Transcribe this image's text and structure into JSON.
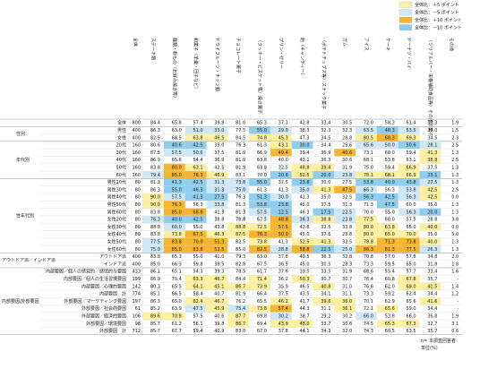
{
  "legend": [
    {
      "label": "全体比：＋5 ポイント",
      "value": 5,
      "color": "#fdf0a0"
    },
    {
      "label": "全体比：－5 ポイント",
      "value": -5,
      "color": "#cfe8f7"
    },
    {
      "label": "全体比：＋10 ポイント",
      "value": 10,
      "color": "#f6b530"
    },
    {
      "label": "全体比：－10 ポイント",
      "value": -10,
      "color": "#8fcdee"
    }
  ],
  "n_header": "全体",
  "columns": [
    "ステーキ類",
    "麺類・粉もの（お好み焼き等）",
    "和菓子（羊羹・団子など）",
    "ドライフルーツ・ナッツ類",
    "チョコレート菓子",
    "（クッキー・ビスケット等）焼き菓子",
    "プリン・ゼリー",
    "飴（キャンディー）",
    "（ポテトチップス等）スナック菓子",
    "ガム",
    "アイス",
    "ケーキ",
    "ドーナツ・パイ",
    "（シリアルバー・栄養補助食品等）その他の菓子",
    "その他"
  ],
  "groups": [
    {
      "label": null,
      "rows": [
        {
          "label": "全体",
          "n": 800,
          "values": [
            "84.4",
            "65.8",
            "57.4",
            "39.8",
            "81.0",
            "65.3",
            "37.1",
            "42.8",
            "33.4",
            "30.5",
            "72.0",
            "58.3",
            "61.4",
            "33.3",
            "1.9"
          ]
        }
      ]
    },
    {
      "label": "性別",
      "rows": [
        {
          "label": "男性",
          "n": 400,
          "values": [
            "86.3",
            "63.0",
            "51.0",
            "33.0",
            "77.5",
            "55.0",
            "29.0",
            "38.3",
            "32.3",
            "32.3",
            "63.5",
            "48.3",
            "53.5",
            "30.0",
            "1.5"
          ]
        },
        {
          "label": "女性",
          "n": 400,
          "values": [
            "82.5",
            "68.5",
            "63.8",
            "46.5",
            "84.5",
            "74.8",
            "45.3",
            "47.3",
            "34.5",
            "28.8",
            "80.5",
            "68.3",
            "69.3",
            "34.5",
            "2.3"
          ]
        }
      ]
    },
    {
      "label": "年代別",
      "rows": [
        {
          "label": "20代",
          "n": 160,
          "values": [
            "80.6",
            "40.6",
            "42.5",
            "35.0",
            "76.3",
            "61.3",
            "43.1",
            "30.0",
            "34.4",
            "25.6",
            "65.6",
            "50.0",
            "50.6",
            "28.1",
            "2.5"
          ]
        },
        {
          "label": "30代",
          "n": 160,
          "values": [
            "87.5",
            "57.5",
            "50.6",
            "37.5",
            "81.9",
            "66.9",
            "49.4",
            "39.4",
            "36.9",
            "40.6",
            "73.1",
            "60.0",
            "59.4",
            "41.3",
            "1.3"
          ]
        },
        {
          "label": "40代",
          "n": 160,
          "values": [
            "86.9",
            "65.6",
            "54.4",
            "36.9",
            "81.9",
            "63.8",
            "40.0",
            "43.1",
            "36.3",
            "30.6",
            "68.1",
            "53.8",
            "63.1",
            "38.8",
            "2.5"
          ]
        },
        {
          "label": "50代",
          "n": 160,
          "values": [
            "83.8",
            "80.0",
            "63.1",
            "42.5",
            "81.9",
            "63.8",
            "32.5",
            "48.8",
            "39.4",
            "31.9",
            "75.0",
            "59.4",
            "66.9",
            "37.5",
            "1.3"
          ]
        },
        {
          "label": "60代",
          "n": 160,
          "values": [
            "79.4",
            "85.0",
            "76.3",
            "46.9",
            "83.1",
            "70.0",
            "20.6",
            "52.5",
            "20.0",
            "23.8",
            "78.1",
            "68.1",
            "66.9",
            "23.1",
            "1.3"
          ]
        }
      ]
    },
    {
      "label": "性年代別",
      "rows": [
        {
          "label": "男性20代",
          "n": 80,
          "values": [
            "81.3",
            "41.3",
            "42.5",
            "31.3",
            "73.8",
            "55.0",
            "37.5",
            "23.8",
            "30.0",
            "27.5",
            "53.8",
            "40.0",
            "43.8",
            "27.5",
            "1.3"
          ]
        },
        {
          "label": "男性30代",
          "n": 80,
          "values": [
            "86.3",
            "55.0",
            "46.3",
            "31.3",
            "75.0",
            "61.3",
            "41.3",
            "35.0",
            "41.3",
            "47.5",
            "66.3",
            "56.3",
            "53.8",
            "42.5",
            "2.5"
          ]
        },
        {
          "label": "男性40代",
          "n": 80,
          "values": [
            "90.0",
            "57.5",
            "41.3",
            "27.5",
            "76.3",
            "51.3",
            "30.0",
            "41.3",
            "35.0",
            "32.5",
            "56.3",
            "42.5",
            "56.3",
            "42.5",
            "0.0"
          ]
        },
        {
          "label": "男性50代",
          "n": 80,
          "values": [
            "90.0",
            "76.3",
            "56.3",
            "33.8",
            "81.3",
            "53.8",
            "23.8",
            "45.0",
            "37.5",
            "31.3",
            "71.3",
            "47.5",
            "60.0",
            "35.0",
            "1.3"
          ]
        },
        {
          "label": "男性60代",
          "n": 80,
          "values": [
            "83.8",
            "85.0",
            "68.8",
            "41.3",
            "81.3",
            "57.5",
            "12.5",
            "46.3",
            "17.5",
            "22.5",
            "70.0",
            "55.0",
            "56.3",
            "20.0",
            "1.3"
          ]
        },
        {
          "label": "女性20代",
          "n": 80,
          "values": [
            "76.3",
            "40.0",
            "42.5",
            "38.8",
            "78.8",
            "67.5",
            "48.8",
            "36.3",
            "38.8",
            "23.8",
            "77.5",
            "60.0",
            "57.5",
            "28.8",
            "3.8"
          ]
        },
        {
          "label": "女性30代",
          "n": 80,
          "values": [
            "88.8",
            "60.0",
            "55.0",
            "43.8",
            "88.8",
            "72.5",
            "57.5",
            "43.8",
            "32.5",
            "33.8",
            "80.0",
            "63.8",
            "65.0",
            "40.0",
            "0.0"
          ]
        },
        {
          "label": "女性40代",
          "n": 80,
          "values": [
            "83.8",
            "73.8",
            "67.5",
            "46.3",
            "87.5",
            "76.3",
            "50.0",
            "45.0",
            "37.5",
            "28.8",
            "80.0",
            "65.0",
            "70.0",
            "35.0",
            "5.0"
          ]
        },
        {
          "label": "女性50代",
          "n": 80,
          "values": [
            "77.5",
            "83.8",
            "70.0",
            "51.3",
            "82.5",
            "73.8",
            "41.3",
            "52.5",
            "41.3",
            "32.5",
            "78.8",
            "71.3",
            "73.8",
            "40.0",
            "1.3"
          ]
        },
        {
          "label": "女性60代",
          "n": 80,
          "values": [
            "75.0",
            "85.0",
            "83.8",
            "52.5",
            "85.0",
            "82.5",
            "28.8",
            "58.8",
            "22.5",
            "25.0",
            "86.3",
            "81.3",
            "77.5",
            "26.3",
            "1.3"
          ]
        }
      ]
    },
    {
      "label": "アウトドア派／インドア派",
      "rows": [
        {
          "label": "アウトドア派",
          "n": 400,
          "values": [
            "83.8",
            "65.3",
            "55.0",
            "41.0",
            "79.3",
            "63.0",
            "37.8",
            "40.5",
            "36.3",
            "32.8",
            "70.8",
            "57.0",
            "57.8",
            "34.8",
            "2.0"
          ]
        },
        {
          "label": "インドア派",
          "n": 400,
          "values": [
            "85.0",
            "66.3",
            "59.8",
            "38.5",
            "82.8",
            "67.5",
            "36.5",
            "45.0",
            "30.5",
            "28.3",
            "73.3",
            "59.5",
            "65.0",
            "31.8",
            "1.8"
          ]
        }
      ]
    },
    {
      "label": "内部要因/外部要因",
      "rows": [
        {
          "label": "内部要因／個人の感覚的／感情的な要因",
          "n": 433,
          "values": [
            "86.1",
            "65.1",
            "54.3",
            "39.3",
            "78.5",
            "61.7",
            "37.6",
            "39.5",
            "33.5",
            "31.9",
            "68.6",
            "55.4",
            "57.7",
            "33.4",
            "1.6"
          ]
        },
        {
          "label": "内部要因／個人の生活習慣要因",
          "n": 199,
          "values": [
            "86.9",
            "70.4",
            "63.3",
            "46.7",
            "84.4",
            "71.4",
            "36.2",
            "50.3",
            "30.7",
            "30.7",
            "76.4",
            "60.8",
            "67.8",
            "35.7",
            "-"
          ]
        },
        {
          "label": "内部要因／心理的要因",
          "n": 142,
          "values": [
            "80.3",
            "65.5",
            "64.1",
            "45.1",
            "86.7",
            "73.9",
            "35.9",
            "46.5",
            "40.8",
            "31.0",
            "76.8",
            "62.0",
            "69.0",
            "41.5",
            "1.4"
          ]
        },
        {
          "label": "内部要因　計",
          "n": 774,
          "values": [
            "85.1",
            "66.5",
            "58.4",
            "40.7",
            "81.9",
            "66.4",
            "37.5",
            "43.5",
            "34.1",
            "31.1",
            "73.3",
            "59.2",
            "62.4",
            "34.4",
            "1.2"
          ]
        },
        {
          "label": "外部要因／マーケティング要因",
          "n": 197,
          "values": [
            "86.3",
            "65.0",
            "62.4",
            "46.7",
            "76.2",
            "65.5",
            "46.2",
            "41.7",
            "39.6",
            "36.0",
            "70.1",
            "62.9",
            "65.6",
            "41.6",
            "-"
          ]
        },
        {
          "label": "外部要因／社会的要因",
          "n": 61,
          "values": [
            "85.2",
            "63.9",
            "47.5",
            "45.9",
            "75.4",
            "73.8",
            "57.4",
            "44.3",
            "31.1",
            "36.1",
            "72.1",
            "65.6",
            "59.0",
            "34.4",
            "-"
          ]
        },
        {
          "label": "外部要因／経済的要因",
          "n": 106,
          "values": [
            "89.6",
            "70.8",
            "57.5",
            "40.6",
            "87.7",
            "69.8",
            "30.2",
            "38.7",
            "29.2",
            "30.2",
            "66.0",
            "53.8",
            "66.0",
            "36.8",
            "1.9"
          ]
        },
        {
          "label": "外部要因／環境要因",
          "n": 98,
          "values": [
            "85.7",
            "61.2",
            "56.1",
            "39.8",
            "86.7",
            "69.4",
            "43.9",
            "48.0",
            "33.7",
            "30.6",
            "74.5",
            "65.3",
            "67.3",
            "32.7",
            "3.1"
          ]
        },
        {
          "label": "外部要因　計",
          "n": 712,
          "values": [
            "85.7",
            "67.7",
            "59.4",
            "40.9",
            "83.0",
            "67.0",
            "37.8",
            "44.1",
            "34.3",
            "32.0",
            "74.3",
            "60.5",
            "63.5",
            "35.7",
            "0.6"
          ]
        }
      ]
    }
  ],
  "notes": [
    "n= 本調査回答者",
    "単位(%)"
  ]
}
